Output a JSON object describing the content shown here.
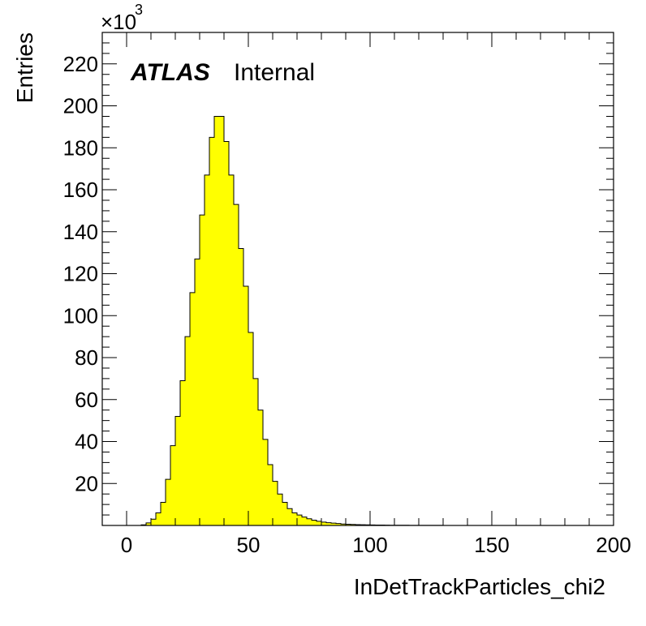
{
  "chart_data": {
    "type": "bar",
    "histogram": true,
    "xlabel": "InDetTrackParticles_chi2",
    "ylabel": "Entries",
    "y_multiplier": {
      "base": "×10",
      "exponent": "3"
    },
    "xlim": [
      -10,
      200
    ],
    "ylim": [
      0,
      235
    ],
    "x_ticks": [
      0,
      50,
      100,
      150,
      200
    ],
    "x_tick_labels": [
      "0",
      "50",
      "100",
      "150",
      "200"
    ],
    "y_ticks": [
      20,
      40,
      60,
      80,
      100,
      120,
      140,
      160,
      180,
      200,
      220
    ],
    "y_tick_labels": [
      "20",
      "40",
      "60",
      "80",
      "100",
      "120",
      "140",
      "160",
      "180",
      "200",
      "220"
    ],
    "bin_width": 2,
    "bin_edges_start": 0,
    "values": [
      0,
      0,
      0,
      0.3,
      1.2,
      3,
      6,
      11,
      22,
      38,
      52,
      69,
      90,
      111,
      127,
      148,
      167,
      185,
      195,
      195,
      183,
      167,
      153,
      132,
      114,
      92,
      70,
      55,
      41,
      29,
      21,
      15,
      11,
      8,
      6,
      5,
      4,
      3.2,
      2.5,
      2,
      1.6,
      1.3,
      1.1,
      0.9,
      0.7,
      0.6,
      0.5,
      0.4,
      0.35,
      0.3,
      0.25,
      0.2,
      0.18,
      0.15,
      0.12,
      0.1,
      0.09,
      0.08,
      0.07,
      0.06,
      0.05,
      0.05,
      0.04,
      0.03,
      0.03,
      0.02,
      0.02
    ],
    "fill_color": "#ffff00",
    "line_color": "#000000",
    "grid": false,
    "legend": "none"
  },
  "annotation": {
    "experiment": "ATLAS",
    "status": "Internal"
  }
}
